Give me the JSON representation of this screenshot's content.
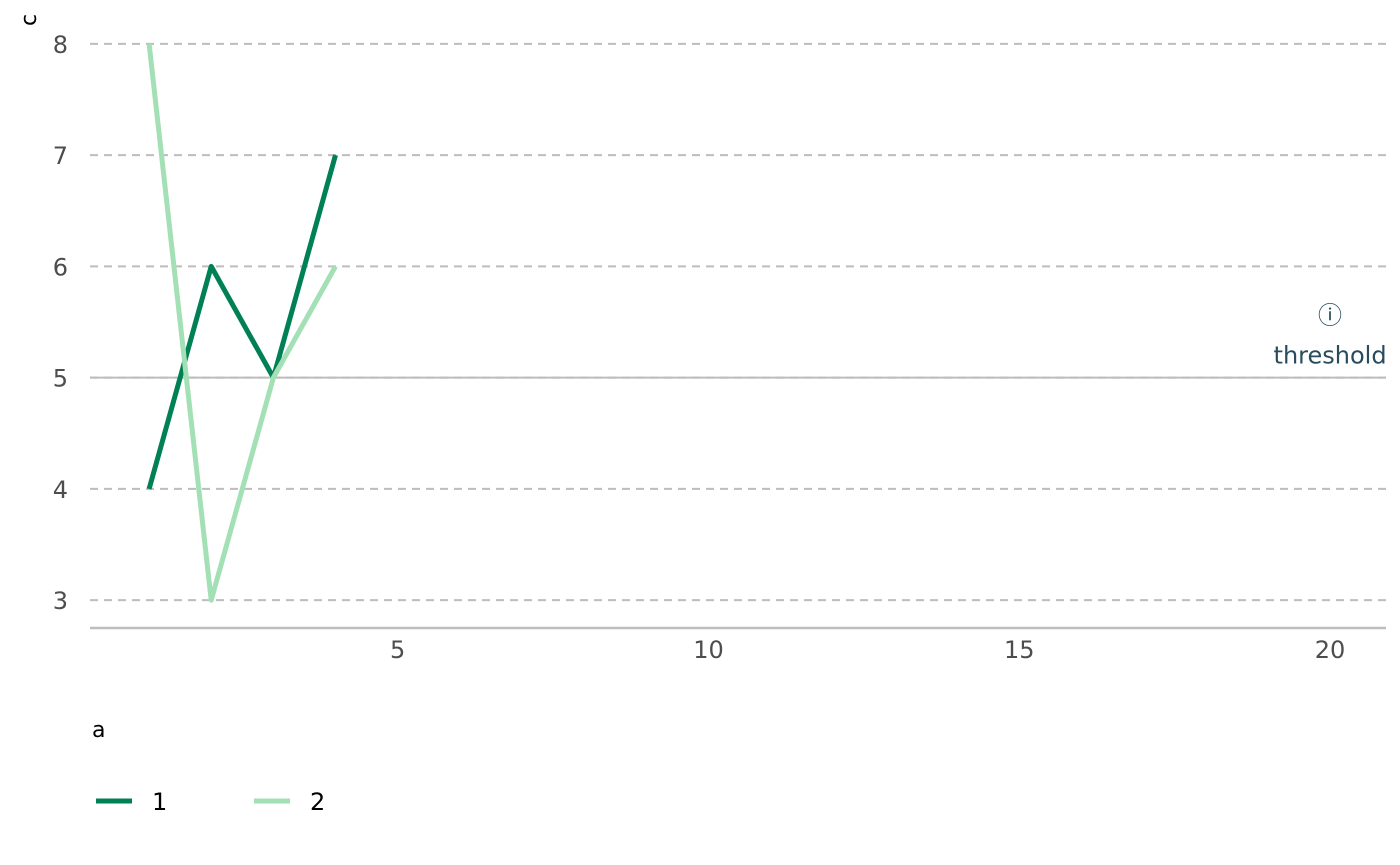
{
  "chart_data": {
    "type": "line",
    "title": "",
    "xlabel": "",
    "ylabel": "c",
    "x": [
      1,
      2,
      3,
      4
    ],
    "xlim": [
      0.05,
      20.9
    ],
    "ylim": [
      2.75,
      8.25
    ],
    "xticks": [
      5,
      10,
      15,
      20
    ],
    "yticks": [
      3,
      4,
      5,
      6,
      7,
      8
    ],
    "grid": {
      "y": true,
      "x": false,
      "style": "dashed"
    },
    "series": [
      {
        "name": "1",
        "color": "#008055",
        "values": [
          4,
          6,
          5,
          7
        ]
      },
      {
        "name": "2",
        "color": "#a3e0b6",
        "values": [
          8,
          3,
          5,
          6
        ]
      }
    ],
    "reference_line": {
      "axis": "y",
      "value": 5
    },
    "annotation": {
      "text": "threshold",
      "icon": "info-icon",
      "x": 20,
      "y": 5,
      "color": "#274c5c"
    },
    "legend": {
      "title": "a",
      "position": "bottom-left",
      "entries": [
        "1",
        "2"
      ]
    },
    "colors": {
      "grid": "#bdbdbd",
      "axis": "#bdbdbd",
      "tick_text": "#4d4d4d"
    }
  }
}
